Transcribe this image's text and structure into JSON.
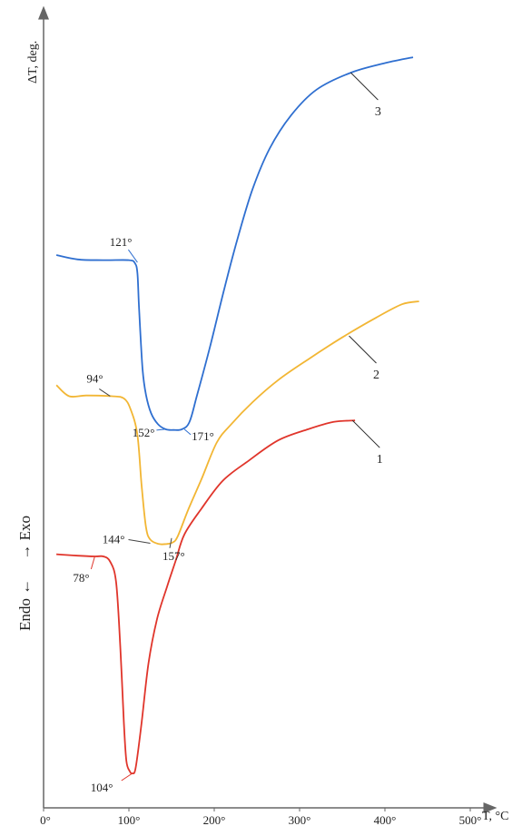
{
  "chart_data": {
    "type": "line",
    "xlabel": "T, °C",
    "ylabel": "ΔT, deg.",
    "side_label": "Endo ←     → Exo",
    "xlim": [
      0,
      550
    ],
    "x_ticks": [
      {
        "value": 0,
        "label": "0°"
      },
      {
        "value": 100,
        "label": "100°"
      },
      {
        "value": 200,
        "label": "200°"
      },
      {
        "value": 300,
        "label": "300°"
      },
      {
        "value": 400,
        "label": "400°"
      },
      {
        "value": 500,
        "label": "500°"
      }
    ],
    "y_units": "relative",
    "ylim": [
      0,
      100
    ],
    "grid": false,
    "series": [
      {
        "name": "3",
        "color": "#2f6fd0",
        "points": [
          [
            15,
            71.5
          ],
          [
            40,
            70.9
          ],
          [
            70,
            70.8
          ],
          [
            100,
            70.8
          ],
          [
            107,
            70.4
          ],
          [
            110,
            69.0
          ],
          [
            112,
            64.0
          ],
          [
            116,
            56.0
          ],
          [
            120,
            52.5
          ],
          [
            126,
            50.0
          ],
          [
            134,
            48.5
          ],
          [
            143,
            47.8
          ],
          [
            152,
            47.7
          ],
          [
            162,
            47.8
          ],
          [
            171,
            48.8
          ],
          [
            180,
            52.5
          ],
          [
            195,
            59.0
          ],
          [
            212,
            67.0
          ],
          [
            228,
            74.0
          ],
          [
            245,
            80.5
          ],
          [
            265,
            86.0
          ],
          [
            290,
            90.5
          ],
          [
            320,
            94.0
          ],
          [
            360,
            96.3
          ],
          [
            400,
            97.6
          ],
          [
            433,
            98.4
          ]
        ]
      },
      {
        "name": "2",
        "color": "#f2b634",
        "points": [
          [
            15,
            53.8
          ],
          [
            30,
            52.3
          ],
          [
            50,
            52.4
          ],
          [
            80,
            52.3
          ],
          [
            94,
            52.0
          ],
          [
            102,
            50.5
          ],
          [
            110,
            47.0
          ],
          [
            115,
            40.0
          ],
          [
            120,
            34.5
          ],
          [
            125,
            32.8
          ],
          [
            135,
            32.2
          ],
          [
            144,
            32.2
          ],
          [
            151,
            32.4
          ],
          [
            157,
            33.2
          ],
          [
            170,
            37.0
          ],
          [
            185,
            41.0
          ],
          [
            203,
            46.0
          ],
          [
            220,
            48.5
          ],
          [
            245,
            51.5
          ],
          [
            275,
            54.5
          ],
          [
            310,
            57.3
          ],
          [
            350,
            60.3
          ],
          [
            390,
            63.0
          ],
          [
            420,
            64.8
          ],
          [
            440,
            65.2
          ]
        ]
      },
      {
        "name": "1",
        "color": "#e0352b",
        "points": [
          [
            15,
            30.8
          ],
          [
            40,
            30.6
          ],
          [
            60,
            30.5
          ],
          [
            70,
            30.5
          ],
          [
            78,
            29.8
          ],
          [
            85,
            27.0
          ],
          [
            90,
            18.0
          ],
          [
            94,
            8.0
          ],
          [
            97,
            2.7
          ],
          [
            101,
            1.3
          ],
          [
            104,
            1.0
          ],
          [
            108,
            1.8
          ],
          [
            115,
            8.0
          ],
          [
            123,
            16.0
          ],
          [
            133,
            22.0
          ],
          [
            145,
            26.5
          ],
          [
            155,
            30.0
          ],
          [
            165,
            33.5
          ],
          [
            185,
            37.0
          ],
          [
            210,
            40.8
          ],
          [
            240,
            43.5
          ],
          [
            275,
            46.3
          ],
          [
            310,
            47.8
          ],
          [
            340,
            48.8
          ],
          [
            365,
            49.0
          ]
        ]
      }
    ],
    "annotations": [
      {
        "text": "121°",
        "series": "3",
        "x": 110,
        "y": 70.5
      },
      {
        "text": "152°",
        "series": "3",
        "x": 143,
        "y": 47.8
      },
      {
        "text": "171°",
        "series": "3",
        "x": 165,
        "y": 47.8
      },
      {
        "text": "94°",
        "series": "2",
        "x": 78,
        "y": 52.3
      },
      {
        "text": "144°",
        "series": "2",
        "x": 125,
        "y": 32.3
      },
      {
        "text": "157°",
        "series": "2",
        "x": 150,
        "y": 33.0
      },
      {
        "text": "78°",
        "series": "1",
        "x": 60,
        "y": 30.5
      },
      {
        "text": "104°",
        "series": "1",
        "x": 104,
        "y": 1.0
      }
    ],
    "curve_labels": [
      {
        "text": "3",
        "series": "3",
        "x": 360,
        "y": 96.3
      },
      {
        "text": "2",
        "series": "2",
        "x": 358,
        "y": 60.5
      },
      {
        "text": "1",
        "series": "1",
        "x": 362,
        "y": 49.0
      }
    ]
  }
}
